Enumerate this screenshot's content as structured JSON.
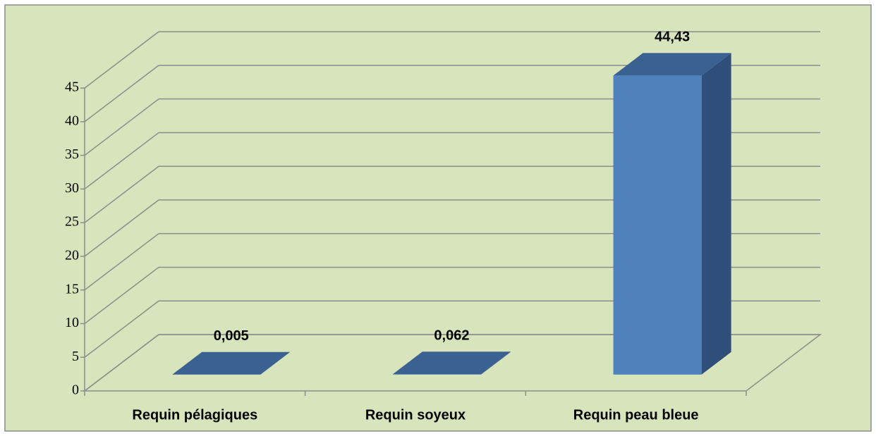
{
  "chart_data": {
    "type": "bar3d",
    "categories": [
      "Requin pélagiques",
      "Requin soyeux",
      "Requin peau bleue"
    ],
    "values": [
      0.005,
      0.062,
      44.43
    ],
    "value_labels": [
      "0,005",
      "0,062",
      "44,43"
    ],
    "color": "#4f81bd",
    "ylim": [
      0,
      45
    ],
    "yticks": [
      0,
      5,
      10,
      15,
      20,
      25,
      30,
      35,
      40,
      45
    ],
    "grid": true
  }
}
